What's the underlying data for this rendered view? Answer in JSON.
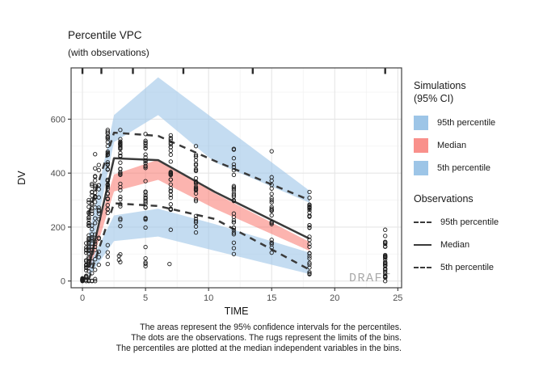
{
  "title": "Percentile VPC",
  "subtitle": "(with observations)",
  "watermark": "DRAFT",
  "caption": {
    "line1": "The areas represent the 95% confidence intervals for the percentiles.",
    "line2": "The dots are the observations. The rugs represent the limits of the bins.",
    "line3": "The percentiles are plotted at the median independent variables in the bins."
  },
  "legend_simulations": {
    "title_line1": "Simulations",
    "title_line2": "(95% CI)",
    "items": [
      {
        "label": "95th percentile",
        "color": "#9dc5e7"
      },
      {
        "label": "Median",
        "color": "#f9908b"
      },
      {
        "label": "5th percentile",
        "color": "#9dc5e7"
      }
    ]
  },
  "legend_observations": {
    "title": "Observations",
    "items": [
      {
        "label": "95th percentile",
        "line": "dashed"
      },
      {
        "label": "Median",
        "line": "solid"
      },
      {
        "label": "5th percentile",
        "line": "dashed"
      }
    ]
  },
  "chart_data": {
    "type": "area+line+scatter (visual predictive check)",
    "title": "Percentile VPC",
    "subtitle": "(with observations)",
    "xlabel": "TIME",
    "ylabel": "DV",
    "xlim": [
      -0.9,
      25.3
    ],
    "ylim": [
      -25,
      790
    ],
    "x_ticks": [
      0,
      5,
      10,
      15,
      20,
      25
    ],
    "y_ticks": [
      0,
      200,
      400,
      600
    ],
    "x_minor": [
      2.5,
      7.5,
      12.5,
      17.5,
      22.5
    ],
    "y_minor": [
      100,
      300,
      500,
      700
    ],
    "grid": true,
    "legend_position": "right",
    "bin_limits_rug": [
      0,
      1.5,
      4,
      8,
      13.5,
      24
    ],
    "bin_median_x": [
      0.5,
      2.5,
      6,
      10.5,
      18
    ],
    "sim_bands": [
      {
        "name": "95th percentile CI",
        "color": "#9dc5e7",
        "opacity": 0.6,
        "hi": [
          170,
          615,
          755,
          598,
          335
        ],
        "lo": [
          60,
          515,
          615,
          440,
          290
        ]
      },
      {
        "name": "Median CI",
        "color": "#f9776d",
        "opacity": 0.55,
        "hi": [
          90,
          395,
          450,
          325,
          145
        ],
        "lo": [
          30,
          332,
          375,
          268,
          112
        ]
      },
      {
        "name": "5th percentile CI",
        "color": "#9dc5e7",
        "opacity": 0.6,
        "hi": [
          55,
          243,
          268,
          211,
          105
        ],
        "lo": [
          15,
          148,
          165,
          112,
          26
        ]
      }
    ],
    "obs_lines": [
      {
        "name": "95th percentile",
        "dashed": true,
        "values": [
          250,
          550,
          538,
          445,
          300
        ]
      },
      {
        "name": "Median",
        "dashed": false,
        "values": [
          50,
          455,
          448,
          330,
          157
        ]
      },
      {
        "name": "5th percentile",
        "dashed": true,
        "values": [
          5,
          288,
          278,
          230,
          42
        ]
      }
    ],
    "obs_point_columns": [
      {
        "t": 0,
        "lo": 0,
        "hi": 10,
        "n": 8,
        "dlo": 0,
        "dhi": 5,
        "nd": 4
      },
      {
        "t": 0.3,
        "lo": 0,
        "hi": 140,
        "n": 12,
        "dlo": 0,
        "dhi": 60,
        "nd": 5
      },
      {
        "t": 0.5,
        "lo": 0,
        "hi": 300,
        "n": 24,
        "dlo": 30,
        "dhi": 240,
        "nd": 10
      },
      {
        "t": 0.75,
        "lo": 0,
        "hi": 360,
        "n": 18,
        "dlo": 80,
        "dhi": 300,
        "nd": 8
      },
      {
        "t": 1,
        "lo": 0,
        "hi": 470,
        "n": 16,
        "dlo": 100,
        "dhi": 420,
        "nd": 8
      },
      {
        "t": 1.3,
        "lo": 60,
        "hi": 430,
        "n": 10,
        "dlo": 150,
        "dhi": 380,
        "nd": 4
      },
      {
        "t": 2,
        "lo": 90,
        "hi": 560,
        "n": 14,
        "dlo": 300,
        "dhi": 555,
        "nd": 22
      },
      {
        "t": 3,
        "lo": 70,
        "hi": 560,
        "n": 14,
        "dlo": 280,
        "dhi": 545,
        "nd": 20
      },
      {
        "t": 5,
        "lo": 55,
        "hi": 545,
        "n": 14,
        "dlo": 260,
        "dhi": 520,
        "nd": 18
      },
      {
        "t": 7,
        "lo": 190,
        "hi": 540,
        "n": 15,
        "dlo": 230,
        "dhi": 480,
        "nd": 14
      },
      {
        "t": 9,
        "lo": 180,
        "hi": 500,
        "n": 14,
        "dlo": 200,
        "dhi": 450,
        "nd": 12
      },
      {
        "t": 12,
        "lo": 100,
        "hi": 490,
        "n": 16,
        "dlo": 150,
        "dhi": 390,
        "nd": 10
      },
      {
        "t": 15,
        "lo": 105,
        "hi": 385,
        "n": 14,
        "dlo": 120,
        "dhi": 360,
        "nd": 8
      },
      {
        "t": 18,
        "lo": 25,
        "hi": 330,
        "n": 18,
        "dlo": 60,
        "dhi": 300,
        "nd": 12
      },
      {
        "t": 24,
        "lo": 0,
        "hi": 145,
        "n": 20,
        "dlo": 15,
        "dhi": 140,
        "nd": 10
      }
    ],
    "obs_outlier_points": [
      [
        2,
        63
      ],
      [
        2.9,
        93
      ],
      [
        2.9,
        78
      ],
      [
        5,
        84
      ],
      [
        5,
        69
      ],
      [
        6.9,
        63
      ],
      [
        12,
        487
      ],
      [
        15,
        481
      ],
      [
        24,
        190
      ],
      [
        24,
        167
      ]
    ],
    "colors": {
      "band_blue": "#9dc5e7",
      "band_red": "#f9776d",
      "obs_line": "#3a3a3a",
      "grid_major": "#e5e5e5",
      "grid_minor": "#f2f2f2",
      "panel_border": "#404040",
      "watermark_gray": "#a9a9a9"
    }
  }
}
